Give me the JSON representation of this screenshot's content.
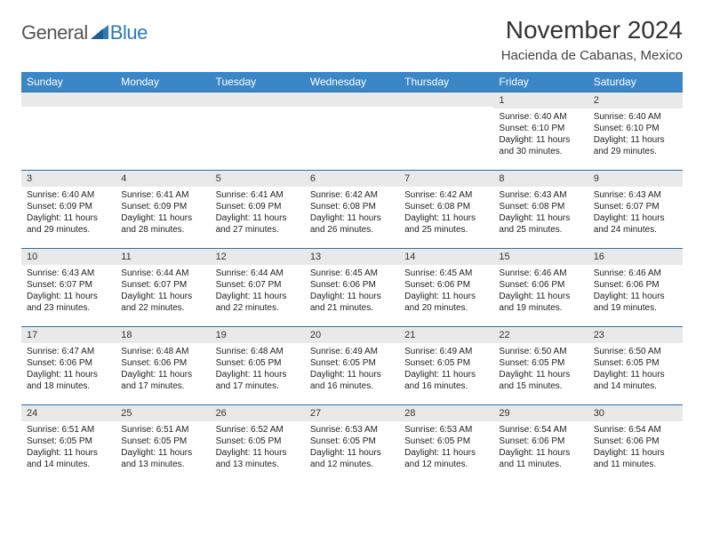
{
  "logo": {
    "part1": "General",
    "part2": "Blue"
  },
  "title": "November 2024",
  "location": "Hacienda de Cabanas, Mexico",
  "colors": {
    "header_bg": "#3b86c6",
    "row_border": "#2a6fa8",
    "daynum_bg": "#e9e9e9",
    "logo_gray": "#555555",
    "logo_blue": "#2a7ab8"
  },
  "weekdays": [
    "Sunday",
    "Monday",
    "Tuesday",
    "Wednesday",
    "Thursday",
    "Friday",
    "Saturday"
  ],
  "weeks": [
    [
      {
        "n": "",
        "sunrise": "",
        "sunset": "",
        "daylight": ""
      },
      {
        "n": "",
        "sunrise": "",
        "sunset": "",
        "daylight": ""
      },
      {
        "n": "",
        "sunrise": "",
        "sunset": "",
        "daylight": ""
      },
      {
        "n": "",
        "sunrise": "",
        "sunset": "",
        "daylight": ""
      },
      {
        "n": "",
        "sunrise": "",
        "sunset": "",
        "daylight": ""
      },
      {
        "n": "1",
        "sunrise": "Sunrise: 6:40 AM",
        "sunset": "Sunset: 6:10 PM",
        "daylight": "Daylight: 11 hours and 30 minutes."
      },
      {
        "n": "2",
        "sunrise": "Sunrise: 6:40 AM",
        "sunset": "Sunset: 6:10 PM",
        "daylight": "Daylight: 11 hours and 29 minutes."
      }
    ],
    [
      {
        "n": "3",
        "sunrise": "Sunrise: 6:40 AM",
        "sunset": "Sunset: 6:09 PM",
        "daylight": "Daylight: 11 hours and 29 minutes."
      },
      {
        "n": "4",
        "sunrise": "Sunrise: 6:41 AM",
        "sunset": "Sunset: 6:09 PM",
        "daylight": "Daylight: 11 hours and 28 minutes."
      },
      {
        "n": "5",
        "sunrise": "Sunrise: 6:41 AM",
        "sunset": "Sunset: 6:09 PM",
        "daylight": "Daylight: 11 hours and 27 minutes."
      },
      {
        "n": "6",
        "sunrise": "Sunrise: 6:42 AM",
        "sunset": "Sunset: 6:08 PM",
        "daylight": "Daylight: 11 hours and 26 minutes."
      },
      {
        "n": "7",
        "sunrise": "Sunrise: 6:42 AM",
        "sunset": "Sunset: 6:08 PM",
        "daylight": "Daylight: 11 hours and 25 minutes."
      },
      {
        "n": "8",
        "sunrise": "Sunrise: 6:43 AM",
        "sunset": "Sunset: 6:08 PM",
        "daylight": "Daylight: 11 hours and 25 minutes."
      },
      {
        "n": "9",
        "sunrise": "Sunrise: 6:43 AM",
        "sunset": "Sunset: 6:07 PM",
        "daylight": "Daylight: 11 hours and 24 minutes."
      }
    ],
    [
      {
        "n": "10",
        "sunrise": "Sunrise: 6:43 AM",
        "sunset": "Sunset: 6:07 PM",
        "daylight": "Daylight: 11 hours and 23 minutes."
      },
      {
        "n": "11",
        "sunrise": "Sunrise: 6:44 AM",
        "sunset": "Sunset: 6:07 PM",
        "daylight": "Daylight: 11 hours and 22 minutes."
      },
      {
        "n": "12",
        "sunrise": "Sunrise: 6:44 AM",
        "sunset": "Sunset: 6:07 PM",
        "daylight": "Daylight: 11 hours and 22 minutes."
      },
      {
        "n": "13",
        "sunrise": "Sunrise: 6:45 AM",
        "sunset": "Sunset: 6:06 PM",
        "daylight": "Daylight: 11 hours and 21 minutes."
      },
      {
        "n": "14",
        "sunrise": "Sunrise: 6:45 AM",
        "sunset": "Sunset: 6:06 PM",
        "daylight": "Daylight: 11 hours and 20 minutes."
      },
      {
        "n": "15",
        "sunrise": "Sunrise: 6:46 AM",
        "sunset": "Sunset: 6:06 PM",
        "daylight": "Daylight: 11 hours and 19 minutes."
      },
      {
        "n": "16",
        "sunrise": "Sunrise: 6:46 AM",
        "sunset": "Sunset: 6:06 PM",
        "daylight": "Daylight: 11 hours and 19 minutes."
      }
    ],
    [
      {
        "n": "17",
        "sunrise": "Sunrise: 6:47 AM",
        "sunset": "Sunset: 6:06 PM",
        "daylight": "Daylight: 11 hours and 18 minutes."
      },
      {
        "n": "18",
        "sunrise": "Sunrise: 6:48 AM",
        "sunset": "Sunset: 6:06 PM",
        "daylight": "Daylight: 11 hours and 17 minutes."
      },
      {
        "n": "19",
        "sunrise": "Sunrise: 6:48 AM",
        "sunset": "Sunset: 6:05 PM",
        "daylight": "Daylight: 11 hours and 17 minutes."
      },
      {
        "n": "20",
        "sunrise": "Sunrise: 6:49 AM",
        "sunset": "Sunset: 6:05 PM",
        "daylight": "Daylight: 11 hours and 16 minutes."
      },
      {
        "n": "21",
        "sunrise": "Sunrise: 6:49 AM",
        "sunset": "Sunset: 6:05 PM",
        "daylight": "Daylight: 11 hours and 16 minutes."
      },
      {
        "n": "22",
        "sunrise": "Sunrise: 6:50 AM",
        "sunset": "Sunset: 6:05 PM",
        "daylight": "Daylight: 11 hours and 15 minutes."
      },
      {
        "n": "23",
        "sunrise": "Sunrise: 6:50 AM",
        "sunset": "Sunset: 6:05 PM",
        "daylight": "Daylight: 11 hours and 14 minutes."
      }
    ],
    [
      {
        "n": "24",
        "sunrise": "Sunrise: 6:51 AM",
        "sunset": "Sunset: 6:05 PM",
        "daylight": "Daylight: 11 hours and 14 minutes."
      },
      {
        "n": "25",
        "sunrise": "Sunrise: 6:51 AM",
        "sunset": "Sunset: 6:05 PM",
        "daylight": "Daylight: 11 hours and 13 minutes."
      },
      {
        "n": "26",
        "sunrise": "Sunrise: 6:52 AM",
        "sunset": "Sunset: 6:05 PM",
        "daylight": "Daylight: 11 hours and 13 minutes."
      },
      {
        "n": "27",
        "sunrise": "Sunrise: 6:53 AM",
        "sunset": "Sunset: 6:05 PM",
        "daylight": "Daylight: 11 hours and 12 minutes."
      },
      {
        "n": "28",
        "sunrise": "Sunrise: 6:53 AM",
        "sunset": "Sunset: 6:05 PM",
        "daylight": "Daylight: 11 hours and 12 minutes."
      },
      {
        "n": "29",
        "sunrise": "Sunrise: 6:54 AM",
        "sunset": "Sunset: 6:06 PM",
        "daylight": "Daylight: 11 hours and 11 minutes."
      },
      {
        "n": "30",
        "sunrise": "Sunrise: 6:54 AM",
        "sunset": "Sunset: 6:06 PM",
        "daylight": "Daylight: 11 hours and 11 minutes."
      }
    ]
  ]
}
